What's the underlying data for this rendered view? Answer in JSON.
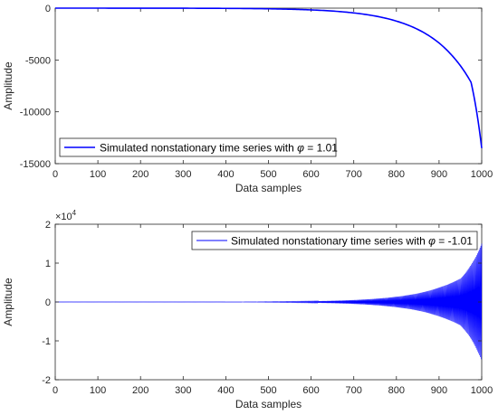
{
  "chart_data": [
    {
      "type": "line",
      "xlabel": "Data samples",
      "ylabel": "Amplitude",
      "xlim": [
        0,
        1000
      ],
      "ylim": [
        -15000,
        0
      ],
      "xticks": [
        0,
        100,
        200,
        300,
        400,
        500,
        600,
        700,
        800,
        900,
        1000
      ],
      "yticks": [
        -15000,
        -10000,
        -5000,
        0
      ],
      "x": [
        0,
        100,
        200,
        300,
        400,
        500,
        550,
        600,
        650,
        700,
        750,
        800,
        850,
        900,
        925,
        950,
        975,
        1000
      ],
      "series": [
        {
          "name": "Simulated nonstationary time series with φ = 1.01",
          "legend_prefix": "Simulated nonstationary time series with ",
          "legend_symbol": "φ",
          "legend_suffix": " = 1.01",
          "color": "#0000ff",
          "values": [
            0,
            -1,
            -3,
            -9,
            -23,
            -63,
            -105,
            -170,
            -280,
            -460,
            -760,
            -1250,
            -2050,
            -3360,
            -4330,
            -5550,
            -7150,
            -13500
          ]
        }
      ],
      "legend_position": "bottom-left",
      "grid": false
    },
    {
      "type": "line",
      "xlabel": "Data samples",
      "ylabel": "Amplitude",
      "xlim": [
        0,
        1000
      ],
      "ylim": [
        -2,
        2
      ],
      "exponent_label": "×10",
      "exponent_power": "4",
      "xticks": [
        0,
        100,
        200,
        300,
        400,
        500,
        600,
        700,
        800,
        900,
        1000
      ],
      "yticks": [
        -2,
        -1,
        0,
        1,
        2
      ],
      "envelope": {
        "note": "alternating-sign series; amplitude envelope in units of 10^4",
        "x": [
          0,
          500,
          550,
          600,
          650,
          700,
          750,
          800,
          850,
          900,
          950,
          1000
        ],
        "amplitude": [
          0.0,
          0.0067,
          0.011,
          0.018,
          0.03,
          0.05,
          0.082,
          0.135,
          0.22,
          0.37,
          0.6,
          1.5
        ]
      },
      "series": [
        {
          "name": "Simulated nonstationary time series with φ = -1.01",
          "legend_prefix": "Simulated nonstationary time series with ",
          "legend_symbol": "φ",
          "legend_suffix": " = -1.01",
          "color": "#0000ff"
        }
      ],
      "legend_position": "top-right",
      "grid": false
    }
  ]
}
